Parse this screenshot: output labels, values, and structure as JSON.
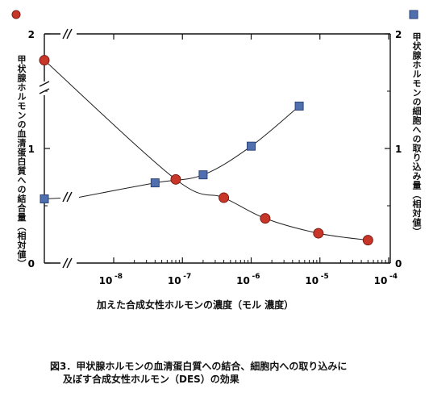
{
  "chart_data": {
    "type": "scatter",
    "x_scale": "log",
    "xlim": [
      1e-09,
      0.0001
    ],
    "ylim": [
      0,
      2
    ],
    "ylim_right": [
      0,
      2
    ],
    "grid": false,
    "xlabel": "加えた合成女性ホルモンの濃度（モル 濃度）",
    "ylabel_left": "甲状腺ホルモンの血清蛋白質への結合量（相対値）",
    "ylabel_right": "甲状腺ホルモンの細胞への取り込み量（相対値）",
    "left_ticks": [
      "0",
      "1",
      "2"
    ],
    "right_ticks": [
      "0",
      "1",
      "2"
    ],
    "x_ticks": [
      {
        "base": "10",
        "exp": "-8"
      },
      {
        "base": "10",
        "exp": "-7"
      },
      {
        "base": "10",
        "exp": "-6"
      },
      {
        "base": "10",
        "exp": "-5"
      },
      {
        "base": "10",
        "exp": "-4"
      }
    ],
    "series": [
      {
        "marker": "circle",
        "color": "#c8362a",
        "axis": "left",
        "x_break_first_point": true,
        "points": [
          {
            "x": 1e-09,
            "y": 1.77
          },
          {
            "x": 8e-08,
            "y": 0.73
          },
          {
            "x": 4e-07,
            "y": 0.57
          },
          {
            "x": 1.6e-06,
            "y": 0.39
          },
          {
            "x": 9.5e-06,
            "y": 0.26
          },
          {
            "x": 5e-05,
            "y": 0.2
          }
        ]
      },
      {
        "marker": "square",
        "color": "#4f6fae",
        "axis": "right",
        "x_break_first_point": true,
        "points": [
          {
            "x": 1e-09,
            "y": 0.56
          },
          {
            "x": 4e-08,
            "y": 0.7
          },
          {
            "x": 2e-07,
            "y": 0.77
          },
          {
            "x": 1e-06,
            "y": 1.02
          },
          {
            "x": 5e-06,
            "y": 1.37
          }
        ]
      }
    ]
  },
  "caption": {
    "line1": "図3．甲状腺ホルモンの血清蛋白質への結合、細胞内への取り込みに",
    "line2": "及ぼす合成女性ホルモン（DES）の効果"
  }
}
